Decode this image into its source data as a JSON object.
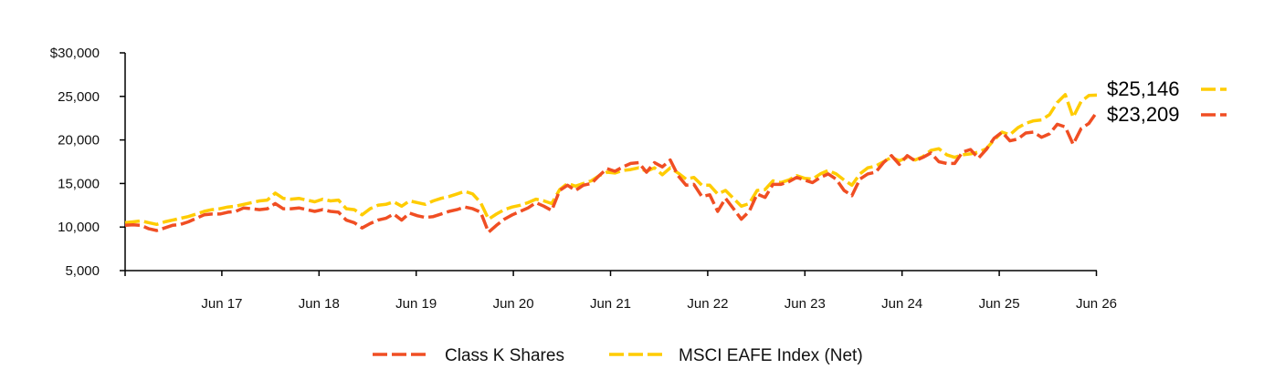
{
  "chart_data": {
    "type": "line",
    "y_tick_labels": [
      "$30,000",
      "25,000",
      "20,000",
      "15,000",
      "10,000",
      "5,000"
    ],
    "y_ticks": [
      30000,
      25000,
      20000,
      15000,
      10000,
      5000
    ],
    "ylim": [
      5000,
      30000
    ],
    "x_tick_labels": [
      "Jun 17",
      "Jun 18",
      "Jun 19",
      "Jun 20",
      "Jun 21",
      "Jun 22",
      "Jun 23",
      "Jun 24",
      "Jun 25",
      "Jun 26"
    ],
    "x_tick_months": [
      12,
      24,
      36,
      48,
      60,
      72,
      84,
      96,
      108,
      120
    ],
    "xlim_months": [
      0,
      120
    ],
    "grid": false,
    "legend_position": "bottom",
    "series": [
      {
        "name": "Class K Shares",
        "color": "#f04e23",
        "end_label": "$23,209",
        "values": [
          10200,
          10250,
          10200,
          9800,
          9600,
          9900,
          10200,
          10300,
          10600,
          11000,
          11400,
          11500,
          11500,
          11700,
          11800,
          12200,
          12100,
          12000,
          12100,
          12700,
          12100,
          12100,
          12200,
          12000,
          11800,
          12000,
          11800,
          11700,
          10800,
          10500,
          9900,
          10400,
          10800,
          11000,
          11500,
          10800,
          11600,
          11300,
          11100,
          11200,
          11500,
          11800,
          12000,
          12300,
          12100,
          11700,
          9400,
          10200,
          10900,
          11400,
          11800,
          12200,
          12800,
          12400,
          11900,
          14200,
          14800,
          14200,
          14800,
          15000,
          15900,
          16700,
          16400,
          16900,
          17300,
          17400,
          16300,
          17400,
          16900,
          17700,
          15900,
          14800,
          14900,
          13500,
          13700,
          11800,
          13300,
          12100,
          10900,
          11800,
          13800,
          13400,
          14900,
          14900,
          15200,
          15700,
          15400,
          15100,
          15700,
          16100,
          15500,
          14200,
          13600,
          15500,
          16100,
          16300,
          17400,
          18200,
          17200,
          18200,
          17600,
          18000,
          18500,
          17500,
          17300,
          17300,
          18600,
          18900,
          17900,
          18900,
          20200,
          20900,
          19900,
          20100,
          20800,
          20900,
          20300,
          20700,
          21800,
          21500,
          19500,
          21300,
          21900,
          23209
        ]
      },
      {
        "name": "MSCI EAFE Index (Net)",
        "color": "#ffcc00",
        "end_label": "$25,146",
        "values": [
          10500,
          10600,
          10700,
          10500,
          10300,
          10600,
          10800,
          11000,
          11200,
          11500,
          11800,
          12000,
          12100,
          12300,
          12400,
          12600,
          12800,
          13000,
          13100,
          13900,
          13300,
          13200,
          13300,
          13100,
          12900,
          13200,
          13000,
          13100,
          12100,
          12000,
          11400,
          12100,
          12500,
          12600,
          12900,
          12400,
          13000,
          12800,
          12600,
          13000,
          13300,
          13500,
          13800,
          14100,
          13800,
          12800,
          10900,
          11500,
          12000,
          12300,
          12500,
          12800,
          13200,
          13000,
          12700,
          14300,
          15000,
          14700,
          15000,
          15300,
          15900,
          16300,
          16200,
          16500,
          16600,
          16800,
          16400,
          16800,
          16000,
          16800,
          16200,
          15500,
          15700,
          14800,
          14800,
          13800,
          14200,
          13300,
          12400,
          12700,
          14200,
          14300,
          15300,
          15100,
          15400,
          15900,
          15600,
          15500,
          16100,
          16500,
          16100,
          15400,
          14800,
          16100,
          16800,
          17000,
          17500,
          18000,
          17600,
          18000,
          17700,
          18100,
          18800,
          19000,
          18300,
          18000,
          18300,
          18400,
          18600,
          19000,
          20000,
          20900,
          20600,
          21400,
          21900,
          22200,
          22300,
          22900,
          24300,
          25200,
          22600,
          24400,
          25100,
          25146
        ]
      }
    ]
  }
}
